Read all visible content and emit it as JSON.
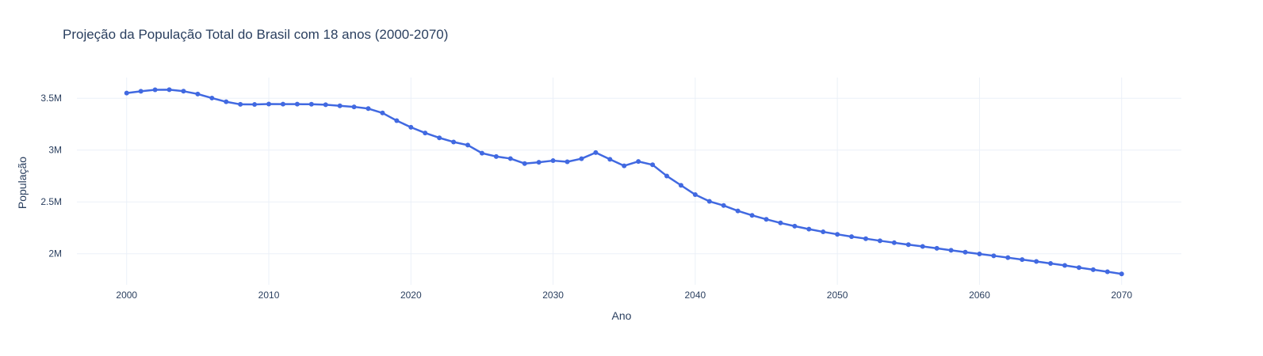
{
  "chart_data": {
    "type": "line",
    "title": "Projeção da População Total do Brasil com 18 anos (2000-2070)",
    "xlabel": "Ano",
    "ylabel": "População",
    "xlim": [
      1996.5,
      2074.2
    ],
    "ylim": [
      1700000,
      3700000
    ],
    "x_ticks": [
      2000,
      2010,
      2020,
      2030,
      2040,
      2050,
      2060,
      2070
    ],
    "y_ticks": [
      {
        "value": 2000000,
        "label": "2M"
      },
      {
        "value": 2500000,
        "label": "2.5M"
      },
      {
        "value": 3000000,
        "label": "3M"
      },
      {
        "value": 3500000,
        "label": "3.5M"
      }
    ],
    "grid": true,
    "color": "#4169e1",
    "x": [
      2000,
      2001,
      2002,
      2003,
      2004,
      2005,
      2006,
      2007,
      2008,
      2009,
      2010,
      2011,
      2012,
      2013,
      2014,
      2015,
      2016,
      2017,
      2018,
      2019,
      2020,
      2021,
      2022,
      2023,
      2024,
      2025,
      2026,
      2027,
      2028,
      2029,
      2030,
      2031,
      2032,
      2033,
      2034,
      2035,
      2036,
      2037,
      2038,
      2039,
      2040,
      2041,
      2042,
      2043,
      2044,
      2045,
      2046,
      2047,
      2048,
      2049,
      2050,
      2051,
      2052,
      2053,
      2054,
      2055,
      2056,
      2057,
      2058,
      2059,
      2060,
      2061,
      2062,
      2063,
      2064,
      2065,
      2066,
      2067,
      2068,
      2069,
      2070
    ],
    "y": [
      3550000,
      3567000,
      3582000,
      3583000,
      3568000,
      3541000,
      3502000,
      3466000,
      3441000,
      3440000,
      3444000,
      3443000,
      3443000,
      3442000,
      3438000,
      3427000,
      3417000,
      3400000,
      3358000,
      3284000,
      3220000,
      3165000,
      3118000,
      3078000,
      3048000,
      2970000,
      2938000,
      2918000,
      2870000,
      2882000,
      2898000,
      2887000,
      2917000,
      2976000,
      2911000,
      2848000,
      2890000,
      2858000,
      2750000,
      2660000,
      2570000,
      2505000,
      2465000,
      2413000,
      2370000,
      2332000,
      2297000,
      2266000,
      2237000,
      2211000,
      2187000,
      2165000,
      2145000,
      2125000,
      2106000,
      2087000,
      2070000,
      2052000,
      2033000,
      2015000,
      1998000,
      1980000,
      1962000,
      1943000,
      1925000,
      1906000,
      1887000,
      1866000,
      1846000,
      1826000,
      1805000
    ]
  }
}
